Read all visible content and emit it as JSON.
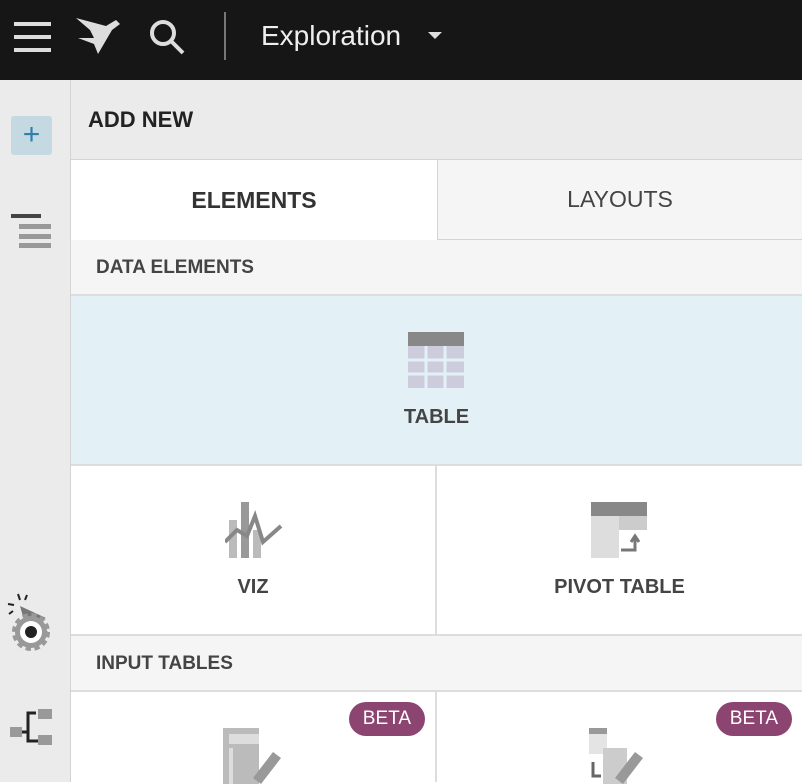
{
  "topbar": {
    "title": "Exploration",
    "icons": [
      "menu-icon",
      "logo-icon",
      "search-icon",
      "chevron-down-icon"
    ]
  },
  "sidebar": {
    "icons": [
      "plus-icon",
      "outline-icon",
      "select-cursor-icon",
      "settings-icon",
      "hierarchy-icon"
    ]
  },
  "panel": {
    "header": "ADD NEW",
    "tabs": [
      {
        "label": "ELEMENTS",
        "active": true
      },
      {
        "label": "LAYOUTS",
        "active": false
      }
    ],
    "sections": [
      {
        "title": "DATA ELEMENTS",
        "items": [
          {
            "label": "TABLE"
          },
          {
            "label": "VIZ"
          },
          {
            "label": "PIVOT TABLE"
          }
        ]
      },
      {
        "title": "INPUT TABLES",
        "items": [
          {
            "badge": "BETA"
          },
          {
            "badge": "BETA"
          }
        ]
      }
    ]
  },
  "colors": {
    "topbar": "#161616",
    "hover": "#e3f1f7",
    "beta": "#8c4470"
  }
}
